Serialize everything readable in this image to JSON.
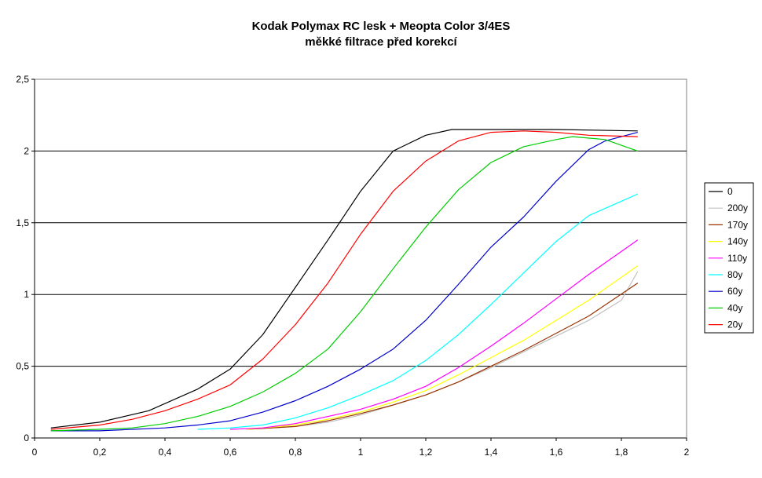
{
  "chart_data": {
    "type": "line",
    "title": [
      "Kodak Polymax RC lesk + Meopta Color 3/4ES",
      "měkké filtrace před korekcí"
    ],
    "xlabel": "",
    "ylabel": "",
    "xlim": [
      0,
      2
    ],
    "ylim": [
      0,
      2.5
    ],
    "x_ticks": [
      0,
      0.2,
      0.4,
      0.6,
      0.8,
      1,
      1.2,
      1.4,
      1.6,
      1.8,
      2
    ],
    "x_tick_labels": [
      "0",
      "0,2",
      "0,4",
      "0,6",
      "0,8",
      "1",
      "1,2",
      "1,4",
      "1,6",
      "1,8",
      "2"
    ],
    "y_ticks": [
      0,
      0.5,
      1,
      1.5,
      2,
      2.5
    ],
    "y_tick_labels": [
      "0",
      "0,5",
      "1",
      "1,5",
      "2",
      "2,5"
    ],
    "grid": "horizontal",
    "legend_position": "right",
    "series": [
      {
        "name": "0",
        "color": "#000000",
        "x": [
          0.05,
          0.2,
          0.35,
          0.5,
          0.6,
          0.7,
          0.8,
          0.9,
          1.0,
          1.1,
          1.2,
          1.28,
          1.4,
          1.6,
          1.85
        ],
        "y": [
          0.07,
          0.11,
          0.19,
          0.34,
          0.48,
          0.72,
          1.05,
          1.38,
          1.72,
          2.0,
          2.11,
          2.15,
          2.15,
          2.15,
          2.14
        ]
      },
      {
        "name": "200y",
        "color": "#c0c0c0",
        "x": [
          0.65,
          0.8,
          0.9,
          1.0,
          1.1,
          1.2,
          1.3,
          1.4,
          1.5,
          1.6,
          1.7,
          1.8,
          1.85
        ],
        "y": [
          0.06,
          0.08,
          0.11,
          0.16,
          0.23,
          0.3,
          0.39,
          0.49,
          0.6,
          0.71,
          0.82,
          0.96,
          1.16
        ]
      },
      {
        "name": "170y",
        "color": "#993300",
        "x": [
          0.65,
          0.8,
          0.9,
          1.0,
          1.1,
          1.2,
          1.3,
          1.4,
          1.5,
          1.6,
          1.7,
          1.85
        ],
        "y": [
          0.06,
          0.08,
          0.12,
          0.17,
          0.23,
          0.3,
          0.39,
          0.5,
          0.61,
          0.73,
          0.85,
          1.08
        ]
      },
      {
        "name": "140y",
        "color": "#ffff00",
        "x": [
          0.65,
          0.8,
          0.9,
          1.0,
          1.1,
          1.2,
          1.3,
          1.4,
          1.5,
          1.6,
          1.7,
          1.85
        ],
        "y": [
          0.06,
          0.09,
          0.13,
          0.18,
          0.25,
          0.33,
          0.44,
          0.56,
          0.68,
          0.82,
          0.96,
          1.2
        ]
      },
      {
        "name": "110y",
        "color": "#ff00ff",
        "x": [
          0.6,
          0.7,
          0.8,
          0.9,
          1.0,
          1.1,
          1.2,
          1.3,
          1.4,
          1.5,
          1.6,
          1.7,
          1.85
        ],
        "y": [
          0.06,
          0.07,
          0.1,
          0.15,
          0.2,
          0.27,
          0.36,
          0.49,
          0.64,
          0.8,
          0.97,
          1.14,
          1.38
        ]
      },
      {
        "name": "80y",
        "color": "#00ffff",
        "x": [
          0.5,
          0.6,
          0.7,
          0.8,
          0.9,
          1.0,
          1.1,
          1.2,
          1.3,
          1.4,
          1.5,
          1.6,
          1.7,
          1.85
        ],
        "y": [
          0.06,
          0.07,
          0.09,
          0.14,
          0.21,
          0.3,
          0.4,
          0.54,
          0.72,
          0.93,
          1.15,
          1.37,
          1.55,
          1.7
        ]
      },
      {
        "name": "60y",
        "color": "#0000cc",
        "x": [
          0.05,
          0.2,
          0.4,
          0.5,
          0.6,
          0.7,
          0.8,
          0.9,
          1.0,
          1.1,
          1.2,
          1.3,
          1.4,
          1.5,
          1.6,
          1.7,
          1.75,
          1.85
        ],
        "y": [
          0.05,
          0.05,
          0.07,
          0.09,
          0.12,
          0.18,
          0.26,
          0.36,
          0.48,
          0.62,
          0.82,
          1.07,
          1.33,
          1.54,
          1.79,
          2.01,
          2.07,
          2.13
        ]
      },
      {
        "name": "40y",
        "color": "#00cc00",
        "x": [
          0.05,
          0.2,
          0.3,
          0.4,
          0.5,
          0.6,
          0.7,
          0.8,
          0.9,
          1.0,
          1.1,
          1.2,
          1.3,
          1.4,
          1.5,
          1.6,
          1.65,
          1.75,
          1.85
        ],
        "y": [
          0.05,
          0.06,
          0.07,
          0.1,
          0.15,
          0.22,
          0.32,
          0.45,
          0.62,
          0.88,
          1.18,
          1.47,
          1.73,
          1.92,
          2.03,
          2.08,
          2.1,
          2.08,
          2.0
        ]
      },
      {
        "name": "20y",
        "color": "#ff0000",
        "x": [
          0.05,
          0.2,
          0.3,
          0.4,
          0.5,
          0.6,
          0.7,
          0.8,
          0.9,
          1.0,
          1.1,
          1.2,
          1.3,
          1.4,
          1.5,
          1.6,
          1.7,
          1.85
        ],
        "y": [
          0.06,
          0.09,
          0.13,
          0.19,
          0.27,
          0.37,
          0.55,
          0.79,
          1.08,
          1.42,
          1.72,
          1.93,
          2.07,
          2.13,
          2.14,
          2.13,
          2.11,
          2.1
        ]
      }
    ]
  }
}
